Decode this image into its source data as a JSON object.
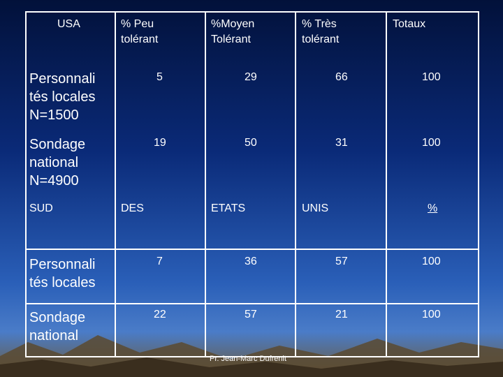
{
  "header": {
    "usa": "USA",
    "peu": "% Peu\ntolérant",
    "moyen": "%Moyen\nTolérant",
    "tres": "% Très\ntolérant",
    "totaux": "Totaux"
  },
  "rows_usa": [
    {
      "label": "Personnali\ntés locales\nN=1500",
      "peu": "5",
      "moyen": "29",
      "tres": "66",
      "total": "100"
    },
    {
      "label": "Sondage\nnational\nN=4900",
      "peu": "19",
      "moyen": "50",
      "tres": "31",
      "total": "100"
    }
  ],
  "sud_header": {
    "sud": "SUD",
    "des": "DES",
    "etats": "ETATS",
    "unis": "UNIS",
    "pct": "%"
  },
  "rows_sud": [
    {
      "label": "Personnali\ntés locales",
      "peu": "7",
      "moyen": "36",
      "tres": "57",
      "total": "100"
    },
    {
      "label": "Sondage\nnational",
      "peu": "22",
      "moyen": "57",
      "tres": "21",
      "total": "100"
    }
  ],
  "footer": "Pr. Jean-Marc Dufrenit"
}
